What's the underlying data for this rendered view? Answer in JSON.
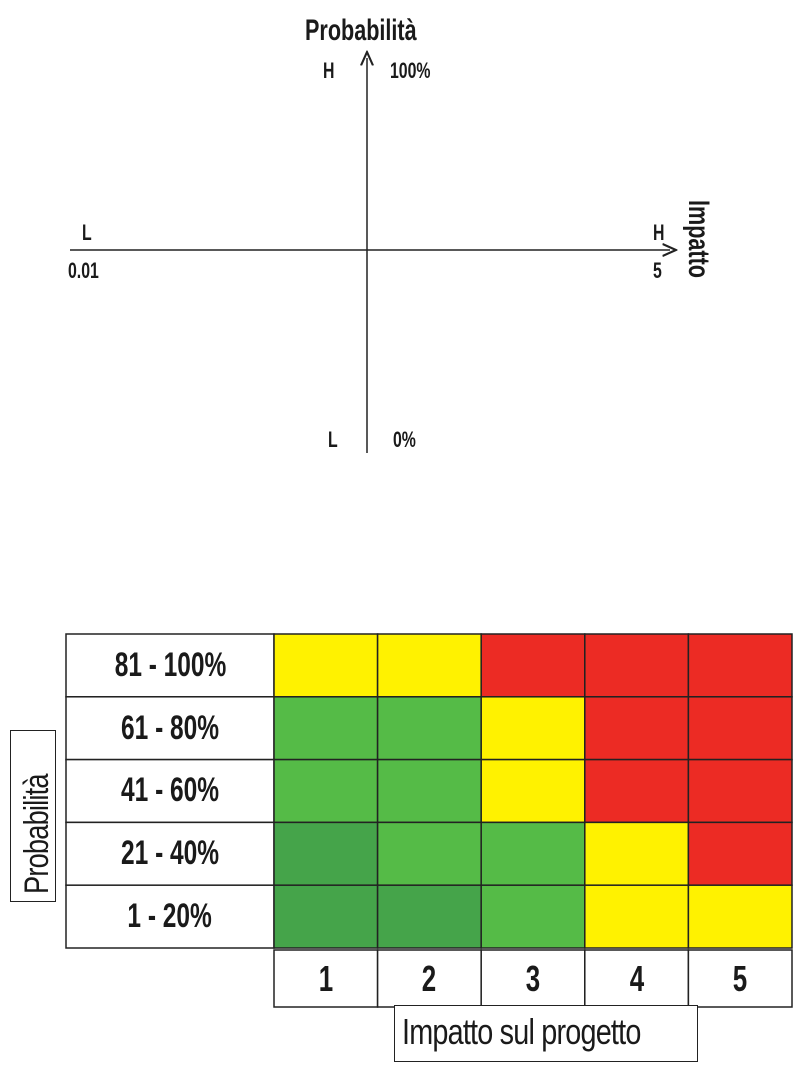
{
  "axes_diagram": {
    "y_title": "Probabilità",
    "y_top_letter": "H",
    "y_top_value": "100%",
    "y_bottom_letter": "L",
    "y_bottom_value": "0%",
    "x_title": "Impatto",
    "x_left_letter": "L",
    "x_left_value": "0.01",
    "x_right_letter": "H",
    "x_right_value": "5"
  },
  "matrix": {
    "y_title": "Probabilità",
    "x_title": "Impatto sul progetto",
    "rows": [
      "81 - 100%",
      "61 - 80%",
      "41 - 60%",
      "21 - 40%",
      "1 - 20%"
    ],
    "cols": [
      "1",
      "2",
      "3",
      "4",
      "5"
    ],
    "cell_colors": [
      [
        "yellow",
        "yellow",
        "red",
        "red",
        "red"
      ],
      [
        "green",
        "green",
        "yellow",
        "red",
        "red"
      ],
      [
        "green",
        "green",
        "yellow",
        "red",
        "red"
      ],
      [
        "darkgreen",
        "green",
        "green",
        "yellow",
        "red"
      ],
      [
        "darkgreen",
        "darkgreen",
        "green",
        "yellow",
        "yellow"
      ]
    ],
    "palette": {
      "yellow": "#fff200",
      "red": "#ec2b24",
      "green": "#55bb47",
      "darkgreen": "#45a44a"
    }
  }
}
